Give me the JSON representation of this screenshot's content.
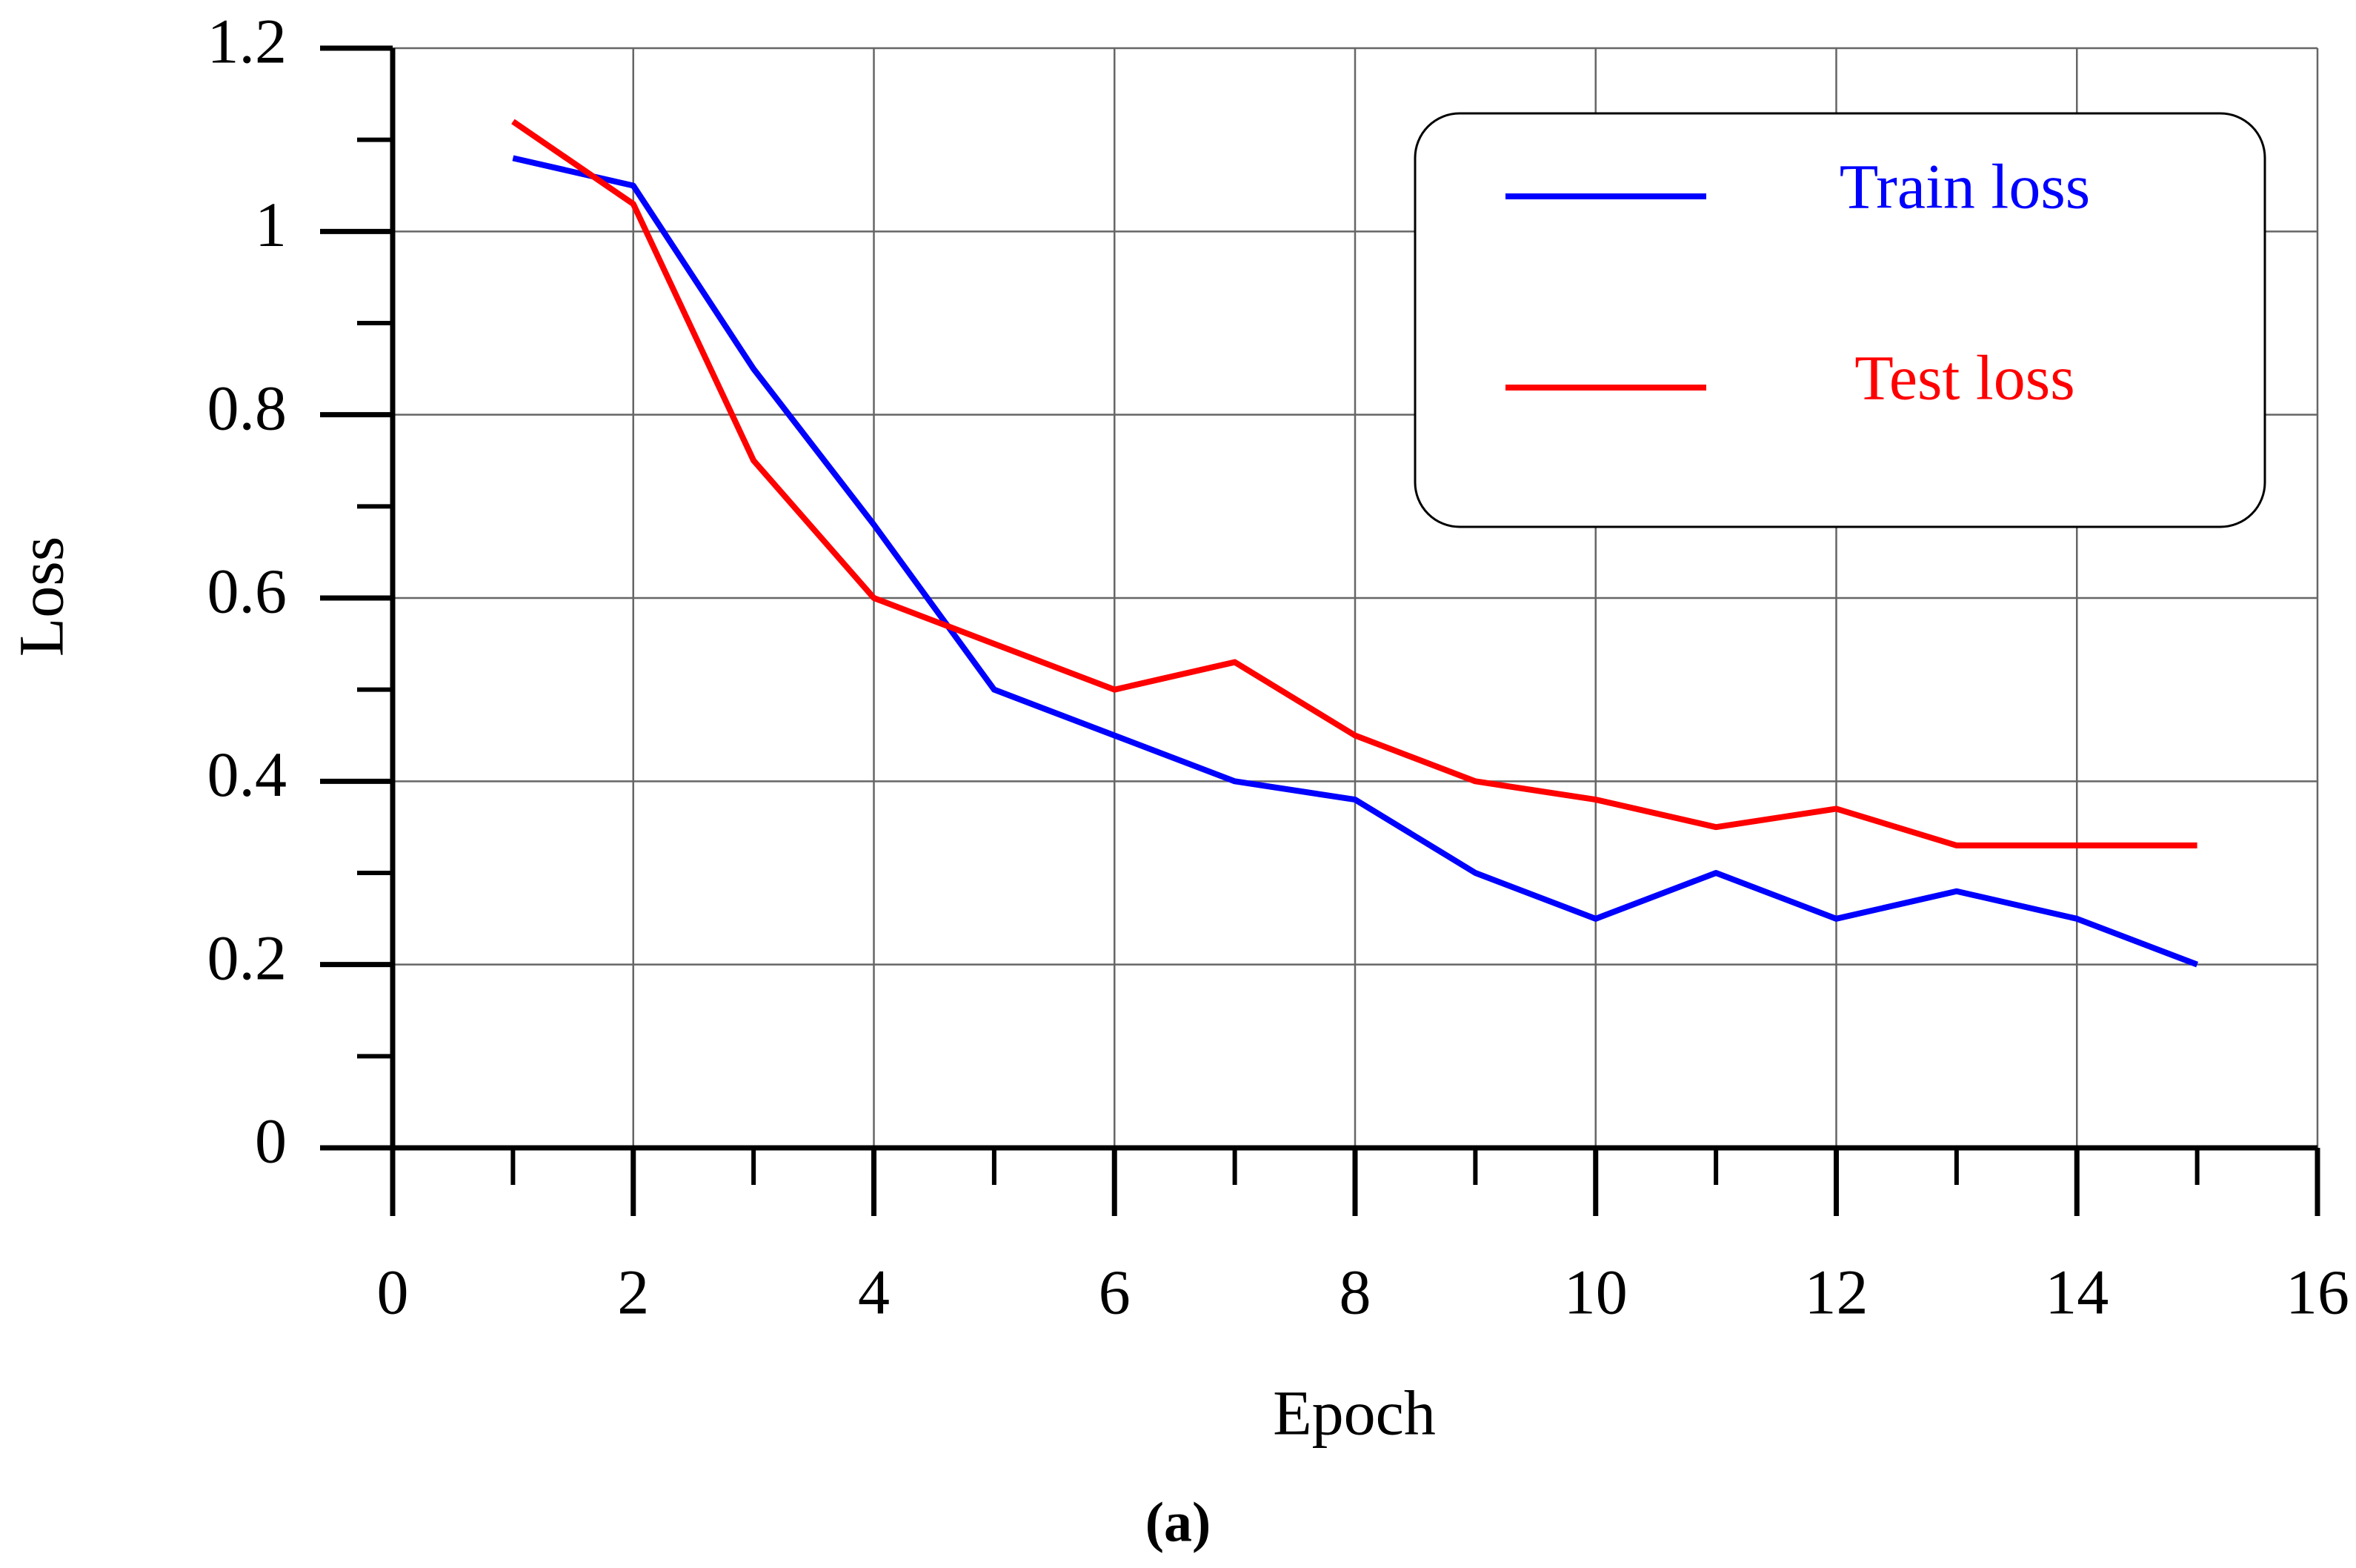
{
  "chart_data": {
    "type": "line",
    "caption": "(a)",
    "x_label": "Epoch",
    "y_label": "Loss",
    "x": [
      1,
      2,
      3,
      4,
      5,
      6,
      7,
      8,
      9,
      10,
      11,
      12,
      13,
      14,
      15
    ],
    "series": [
      {
        "name": "Train loss",
        "color": "#0000ff",
        "values": [
          1.08,
          1.05,
          0.85,
          0.68,
          0.5,
          0.45,
          0.4,
          0.38,
          0.3,
          0.25,
          0.3,
          0.25,
          0.28,
          0.25,
          0.2
        ]
      },
      {
        "name": "Test loss",
        "color": "#ff0000",
        "values": [
          1.12,
          1.03,
          0.75,
          0.6,
          0.55,
          0.5,
          0.53,
          0.45,
          0.4,
          0.38,
          0.35,
          0.37,
          0.33,
          0.33,
          0.33
        ]
      }
    ],
    "xlim": [
      0,
      16
    ],
    "xticks": [
      0,
      2,
      4,
      6,
      8,
      10,
      12,
      14,
      16
    ],
    "ylim": [
      0,
      1.2
    ],
    "yticks": [
      0,
      0.2,
      0.4,
      0.6,
      0.8,
      1,
      1.2
    ],
    "grid": true,
    "legend": "upper right"
  }
}
